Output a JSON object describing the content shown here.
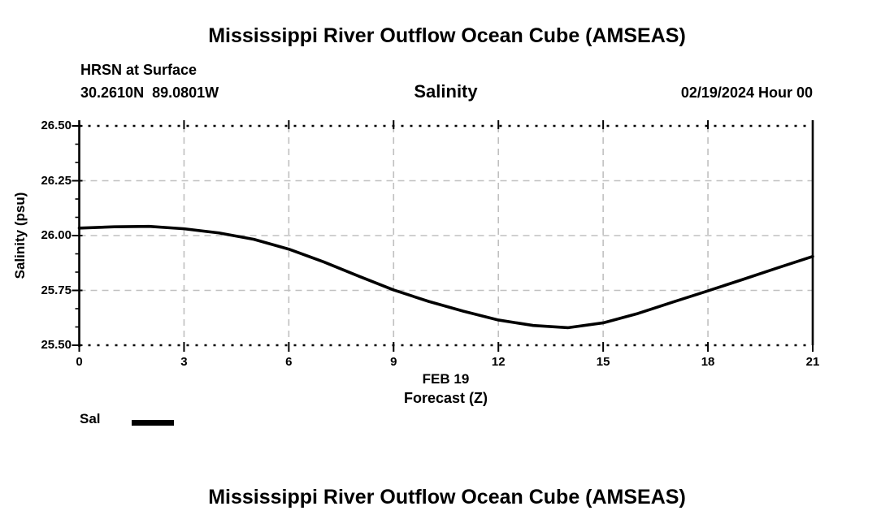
{
  "header": {
    "title": "Mississippi River Outflow Ocean Cube (AMSEAS)",
    "station_line1": "HRSN at Surface",
    "station_line2": "30.2610N  89.0801W",
    "variable_title": "Salinity",
    "datetime_label": "02/19/2024 Hour 00"
  },
  "footer": {
    "title": "Mississippi River Outflow Ocean Cube (AMSEAS)"
  },
  "legend": {
    "label": "Sal",
    "position": "bottom-left"
  },
  "colors": {
    "line": "#000000",
    "grid": "#c0c0c0",
    "axis": "#000000",
    "text": "#000000",
    "background": "#ffffff"
  },
  "chart_data": {
    "type": "line",
    "title": "Salinity",
    "ylabel": "Salinity (psu)",
    "xlabel_lines": [
      "FEB 19",
      "Forecast (Z)"
    ],
    "xlim": [
      0,
      21
    ],
    "ylim": [
      25.5,
      26.5
    ],
    "xticks": [
      0,
      3,
      6,
      9,
      12,
      15,
      18,
      21
    ],
    "xtick_labels": [
      "0",
      "3",
      "6",
      "9",
      "12",
      "15",
      "18",
      "21"
    ],
    "yticks": [
      25.5,
      25.75,
      26.0,
      26.25,
      26.5
    ],
    "ytick_labels": [
      "25.50",
      "25.75",
      "26.00",
      "26.25",
      "26.50"
    ],
    "grid": true,
    "legend_position": "bottom-left",
    "x": [
      0,
      1,
      2,
      3,
      4,
      5,
      6,
      7,
      8,
      9,
      10,
      11,
      12,
      13,
      14,
      15,
      16,
      17,
      18,
      19,
      20,
      21
    ],
    "series": [
      {
        "name": "Sal",
        "color": "#000000",
        "values": [
          26.034,
          26.04,
          26.042,
          26.031,
          26.012,
          25.983,
          25.938,
          25.88,
          25.815,
          25.752,
          25.7,
          25.655,
          25.615,
          25.59,
          25.58,
          25.602,
          25.645,
          25.697,
          25.748,
          25.8,
          25.853,
          25.905
        ]
      }
    ]
  }
}
